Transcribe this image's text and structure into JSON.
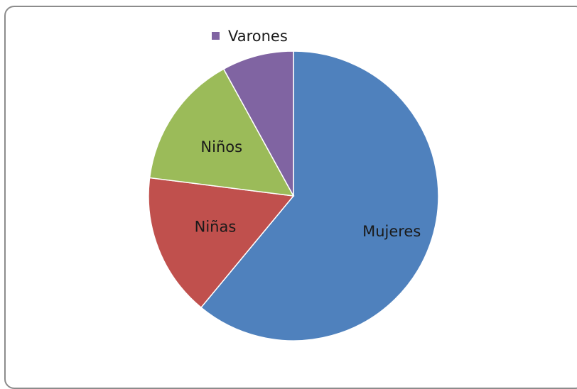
{
  "chart_data": {
    "type": "pie",
    "title": "",
    "legend_position": "top",
    "start_angle_deg": 0,
    "direction": "clockwise",
    "slices": [
      {
        "label": "Mujeres",
        "value": 61,
        "color": "#4f81bd",
        "show_label": true,
        "in_legend": false
      },
      {
        "label": "Niñas",
        "value": 16,
        "color": "#c0504d",
        "show_label": true,
        "in_legend": false
      },
      {
        "label": "Niños",
        "value": 15,
        "color": "#9bbb59",
        "show_label": true,
        "in_legend": false
      },
      {
        "label": "Varones",
        "value": 8,
        "color": "#8064a2",
        "show_label": false,
        "in_legend": true
      }
    ]
  }
}
